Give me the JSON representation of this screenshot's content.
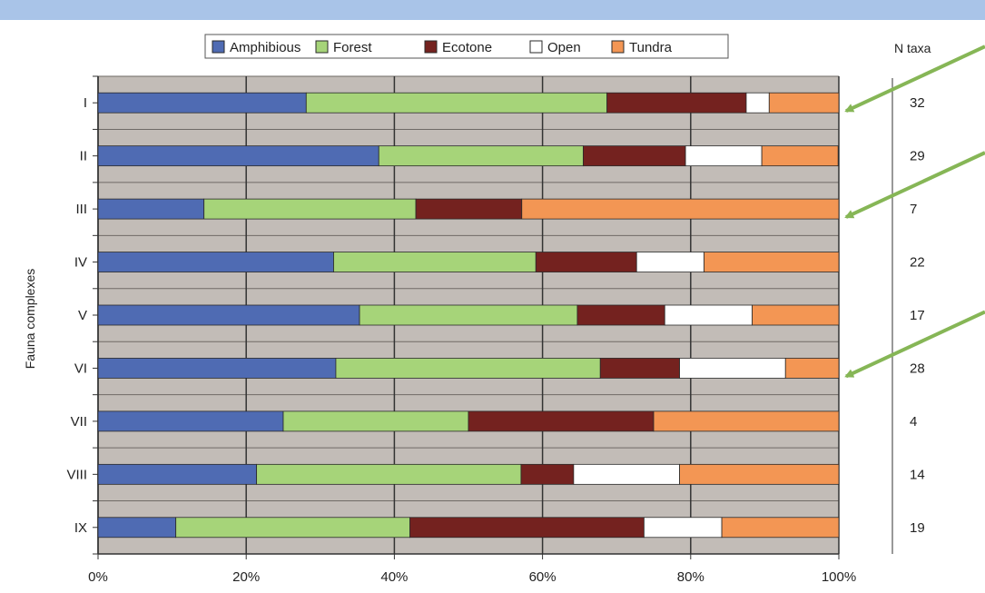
{
  "chart_data": {
    "type": "bar",
    "orientation": "horizontal",
    "stacked": true,
    "categories": [
      "I",
      "II",
      "III",
      "IV",
      "V",
      "VI",
      "VII",
      "VIII",
      "IX"
    ],
    "ylabel": "Fauna complexes",
    "xlabel": "",
    "x_ticks": [
      "0%",
      "20%",
      "40%",
      "60%",
      "80%",
      "100%"
    ],
    "xlim": [
      0,
      100
    ],
    "grid": true,
    "legend_position": "top",
    "series": [
      {
        "name": "Amphibious",
        "color": "#4f6bb3",
        "values": [
          28.1,
          37.9,
          14.3,
          31.8,
          35.3,
          32.1,
          25.0,
          21.4,
          10.5
        ]
      },
      {
        "name": "Forest",
        "color": "#a6d479",
        "values": [
          40.6,
          27.6,
          28.6,
          27.3,
          29.4,
          35.7,
          25.0,
          35.7,
          31.6
        ]
      },
      {
        "name": "Ecotone",
        "color": "#74221f",
        "values": [
          18.8,
          13.8,
          14.3,
          13.6,
          11.8,
          10.7,
          25.0,
          7.1,
          31.6
        ]
      },
      {
        "name": "Open",
        "color": "#ffffff",
        "values": [
          3.1,
          10.3,
          0,
          9.1,
          11.8,
          14.3,
          0,
          14.3,
          10.5
        ]
      },
      {
        "name": "Tundra",
        "color": "#f39654",
        "values": [
          9.4,
          10.3,
          42.8,
          18.2,
          11.7,
          7.2,
          25.0,
          21.5,
          15.8
        ]
      }
    ],
    "n_taxa_header": "N taxa",
    "n_taxa": [
      "32",
      "29",
      "7",
      "22",
      "17",
      "28",
      "4",
      "14",
      "19"
    ],
    "annotations": [
      {
        "type": "arrow",
        "target": "I",
        "color": "#86b656"
      },
      {
        "type": "arrow",
        "target": "III",
        "color": "#86b656"
      },
      {
        "type": "arrow",
        "target": "VI",
        "color": "#86b656"
      }
    ],
    "colors": {
      "plot_background": "#c2bcb7",
      "gridline": "#333333",
      "slide_band": "#a9c4e8",
      "arrow": "#86b656"
    }
  }
}
